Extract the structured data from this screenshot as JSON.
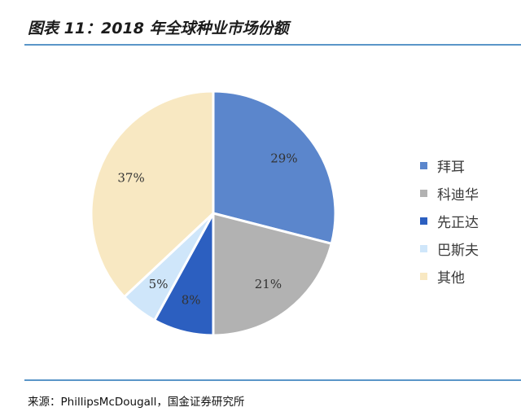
{
  "figure": {
    "title": "图表 11：2018 年全球种业市场份额",
    "source": "来源：PhillipsMcDougall，国金证券研究所"
  },
  "chart_data": {
    "type": "pie",
    "title": "",
    "slices": [
      {
        "name": "拜耳",
        "value": 29,
        "label": "29%",
        "color": "#5b86cc"
      },
      {
        "name": "科迪华",
        "value": 21,
        "label": "21%",
        "color": "#b2b2b2"
      },
      {
        "name": "先正达",
        "value": 8,
        "label": "8%",
        "color": "#2c5fc0"
      },
      {
        "name": "巴斯夫",
        "value": 5,
        "label": "5%",
        "color": "#cfe6fa"
      },
      {
        "name": "其他",
        "value": 37,
        "label": "37%",
        "color": "#f8e8c2"
      }
    ],
    "legend_position": "right"
  }
}
